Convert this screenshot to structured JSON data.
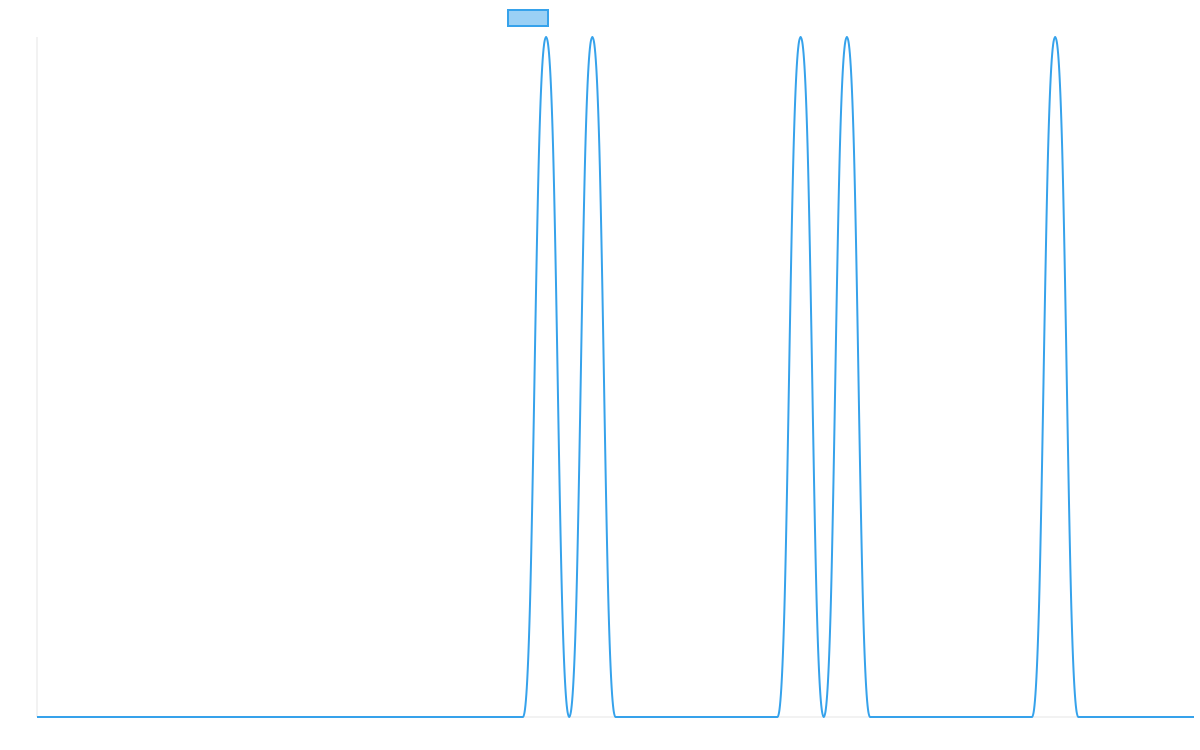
{
  "chart_data": {
    "type": "line",
    "title": "",
    "xlabel": "",
    "ylabel": "",
    "ylim": [
      0,
      1
    ],
    "grid": false,
    "legend": {
      "placement": "top-center",
      "entries": [
        ""
      ]
    },
    "colors": {
      "series_stroke": "#36a2eb",
      "series_fill": "#9ad0f5",
      "axis": "#e6e6e6"
    },
    "series": [
      {
        "values": [
          0,
          0,
          0,
          0,
          0,
          0,
          0,
          0,
          0,
          0,
          0,
          0,
          0,
          0,
          0,
          0,
          0,
          0,
          0,
          0,
          0,
          0,
          1,
          0,
          1,
          0,
          0,
          0,
          0,
          0,
          0,
          0,
          0,
          1,
          0,
          1,
          0,
          0,
          0,
          0,
          0,
          0,
          0,
          0,
          1,
          0,
          0,
          0,
          0,
          0,
          0
        ]
      }
    ]
  }
}
